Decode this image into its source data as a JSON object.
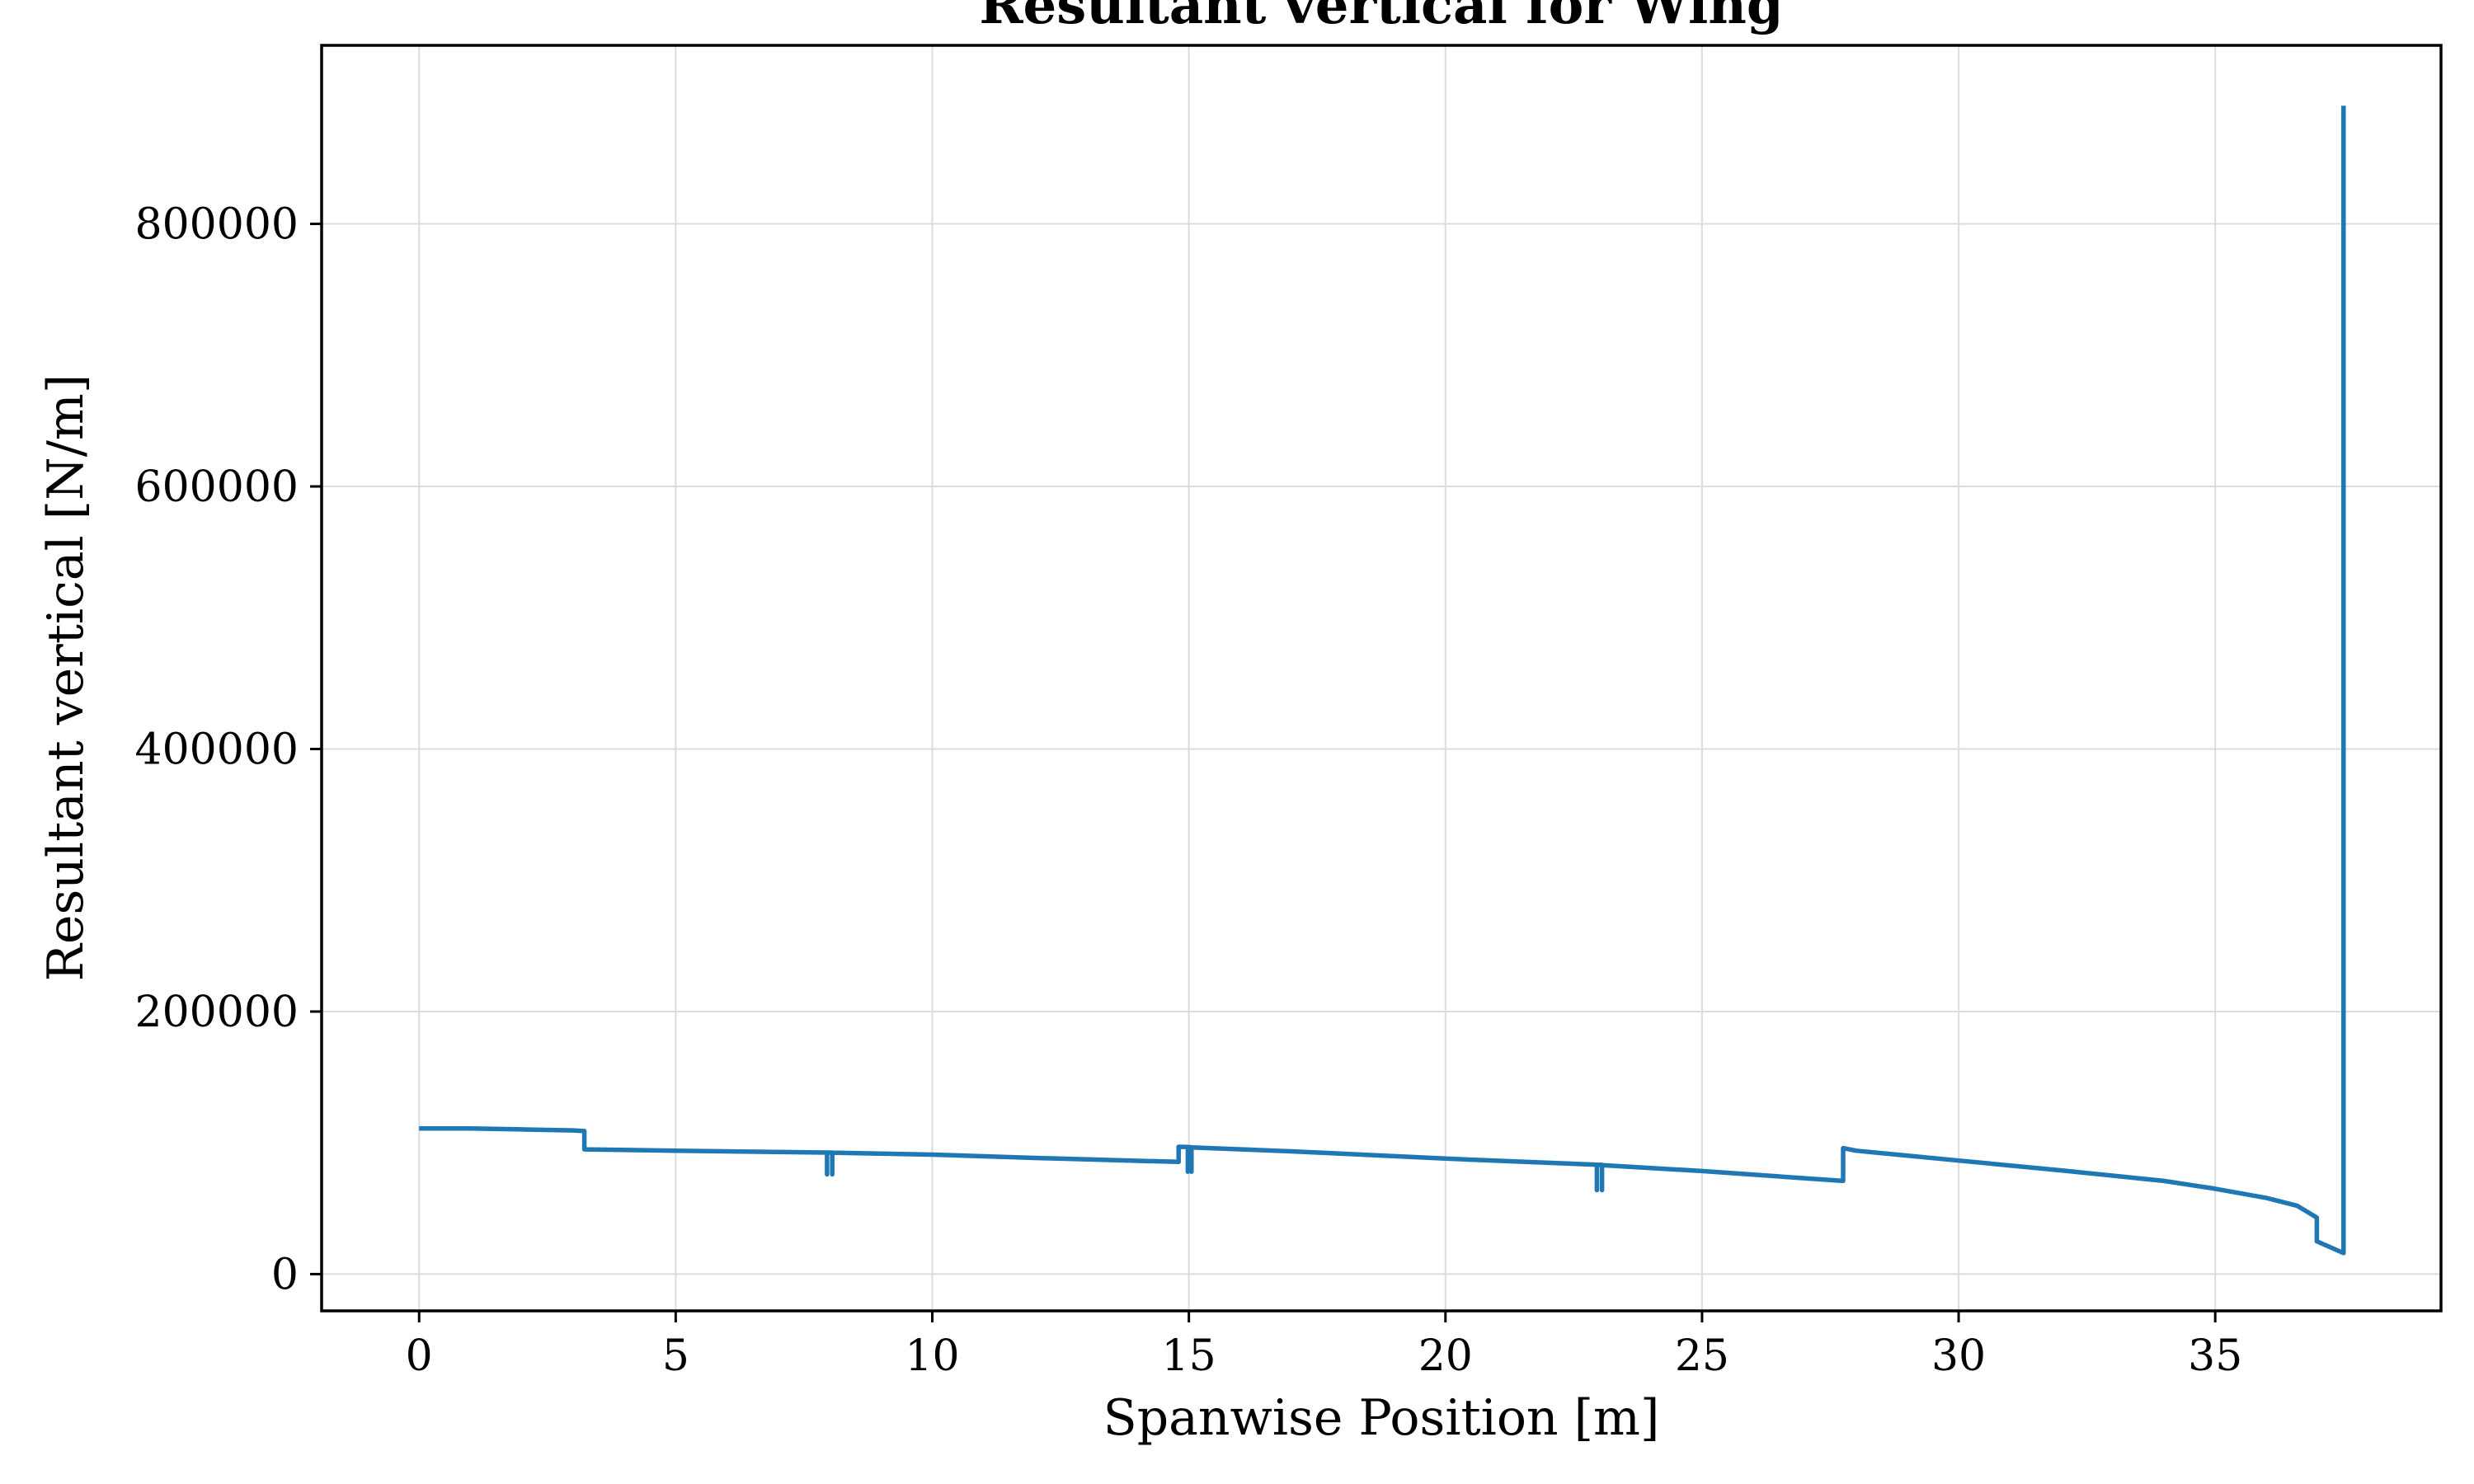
{
  "chart_data": {
    "type": "line",
    "title": "Resultant vertical for Wing",
    "xlabel": "Spanwise Position [m]",
    "ylabel": "Resultant vertical [N/m]",
    "xlim": [
      -1.9,
      39.4
    ],
    "ylim": [
      -28000,
      936000
    ],
    "xticks": [
      0,
      5,
      10,
      15,
      20,
      25,
      30,
      35
    ],
    "yticks": [
      0,
      200000,
      400000,
      600000,
      800000
    ],
    "grid": true,
    "legend": "none",
    "colors": {
      "series": "#1f77b4",
      "grid": "#dcdcdc",
      "axes": "#000000"
    },
    "series": [
      {
        "color": "#1f77b4",
        "x": [
          0,
          1,
          2,
          3,
          3.22,
          3.22,
          5,
          7.95,
          7.95,
          7.95,
          8.05,
          8.05,
          8.05,
          10,
          12,
          14.8,
          14.8,
          14.98,
          14.98,
          14.98,
          15.05,
          15.05,
          15.05,
          17,
          20,
          22.95,
          22.95,
          22.95,
          23.05,
          23.05,
          23.05,
          25,
          27.75,
          27.75,
          28,
          30,
          32,
          34,
          35,
          36,
          36.6,
          36.98,
          36.98,
          37.5,
          37.5
        ],
        "y": [
          111000,
          111000,
          110200,
          109500,
          109000,
          95000,
          94000,
          92600,
          76000,
          92600,
          92600,
          76000,
          92500,
          91000,
          88500,
          85500,
          97000,
          96800,
          78000,
          96800,
          96600,
          78000,
          96500,
          93500,
          88000,
          83300,
          64000,
          83300,
          83200,
          64000,
          83000,
          78500,
          71000,
          96000,
          94000,
          86500,
          79000,
          71000,
          65000,
          58000,
          52000,
          43000,
          25000,
          16000,
          890000
        ]
      }
    ]
  }
}
